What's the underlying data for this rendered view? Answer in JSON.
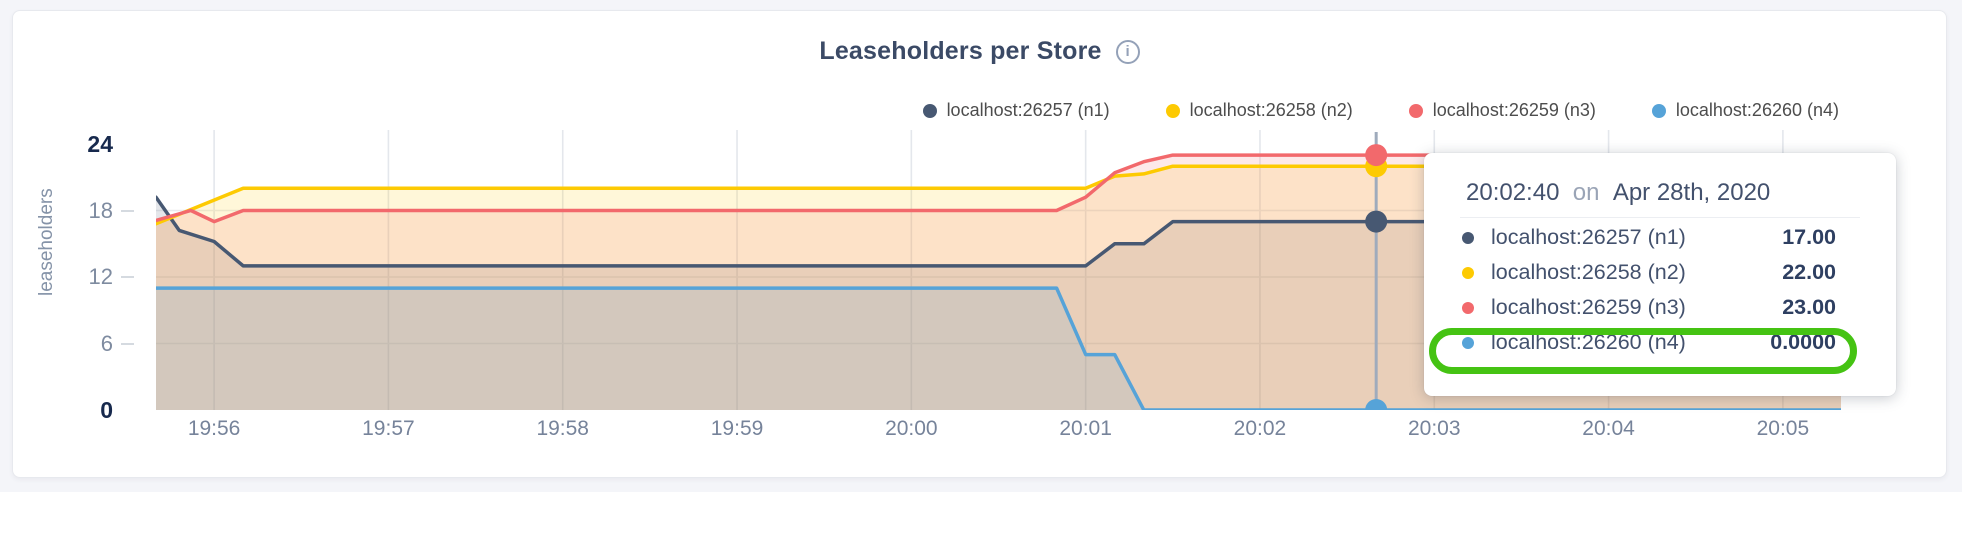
{
  "chart_data": {
    "type": "area",
    "title": "Leaseholders per Store",
    "info_icon_glyph": "i",
    "ylabel": "leaseholders",
    "ylim": [
      0,
      24
    ],
    "yticks": [
      0,
      6,
      12,
      18,
      24
    ],
    "grid_yticks": [
      6,
      12,
      18
    ],
    "x_start": "19:55:40",
    "x_end": "20:05:20",
    "xticks": [
      "19:56",
      "19:57",
      "19:58",
      "19:59",
      "20:00",
      "20:01",
      "20:02",
      "20:03",
      "20:04",
      "20:05"
    ],
    "legend_position": "top-right",
    "grid": true,
    "series": [
      {
        "name": "localhost:26257 (n1)",
        "color": "#475872",
        "points": [
          [
            0,
            19.2
          ],
          [
            8,
            16.2
          ],
          [
            20,
            15.2
          ],
          [
            30,
            13
          ],
          [
            320,
            13
          ],
          [
            330,
            15
          ],
          [
            340,
            15
          ],
          [
            350,
            17
          ],
          [
            580,
            17
          ]
        ]
      },
      {
        "name": "localhost:26258 (n2)",
        "color": "#fdca02",
        "points": [
          [
            0,
            16.8
          ],
          [
            30,
            20
          ],
          [
            320,
            20
          ],
          [
            330,
            21.1
          ],
          [
            340,
            21.3
          ],
          [
            350,
            22
          ],
          [
            580,
            22
          ]
        ]
      },
      {
        "name": "localhost:26259 (n3)",
        "color": "#f2696c",
        "points": [
          [
            0,
            17.1
          ],
          [
            12,
            18
          ],
          [
            20,
            17
          ],
          [
            30,
            18
          ],
          [
            310,
            18
          ],
          [
            320,
            19.2
          ],
          [
            330,
            21.4
          ],
          [
            340,
            22.4
          ],
          [
            350,
            23
          ],
          [
            580,
            23
          ]
        ]
      },
      {
        "name": "localhost:26260 (n4)",
        "color": "#56a3d8",
        "points": [
          [
            0,
            11
          ],
          [
            310,
            11
          ],
          [
            320,
            5
          ],
          [
            330,
            5
          ],
          [
            340,
            0
          ],
          [
            580,
            0
          ]
        ]
      }
    ],
    "hover": {
      "time": "20:02:40",
      "connector": "on",
      "date": "Apr 28th, 2020",
      "seconds_from_start": 420,
      "marker_values": [
        17,
        22,
        23,
        0
      ],
      "display_values": [
        "17.00",
        "22.00",
        "23.00",
        "0.0000"
      ]
    },
    "annotation": {
      "highlighted_row_index": 3,
      "color": "#45c313"
    }
  }
}
